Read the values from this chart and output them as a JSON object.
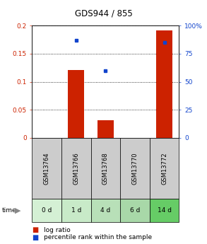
{
  "title": "GDS944 / 855",
  "samples": [
    "GSM13764",
    "GSM13766",
    "GSM13768",
    "GSM13770",
    "GSM13772"
  ],
  "time_labels": [
    "0 d",
    "1 d",
    "4 d",
    "6 d",
    "14 d"
  ],
  "log_ratio": [
    0.0,
    0.121,
    0.032,
    0.0,
    0.191
  ],
  "percentile_rank": [
    null,
    87.0,
    60.0,
    null,
    85.0
  ],
  "ylim_left": [
    0,
    0.2
  ],
  "ylim_right": [
    0,
    100
  ],
  "yticks_left": [
    0,
    0.05,
    0.1,
    0.15,
    0.2
  ],
  "ytick_labels_left": [
    "0",
    "0.05",
    "0.1",
    "0.15",
    "0.2"
  ],
  "yticks_right": [
    0,
    25,
    50,
    75,
    100
  ],
  "ytick_labels_right": [
    "0",
    "25",
    "50",
    "75",
    "100%"
  ],
  "bar_color": "#cc2200",
  "dot_color": "#1144cc",
  "bar_width": 0.55,
  "grid_color": "#000000",
  "bg_plot": "#ffffff",
  "bg_gsm": "#cccccc",
  "time_colors": [
    "#d4f0d4",
    "#c8eac8",
    "#b8e0b8",
    "#a8d8a8",
    "#66cc66"
  ],
  "legend_log_ratio": "log ratio",
  "legend_percentile": "percentile rank within the sample"
}
